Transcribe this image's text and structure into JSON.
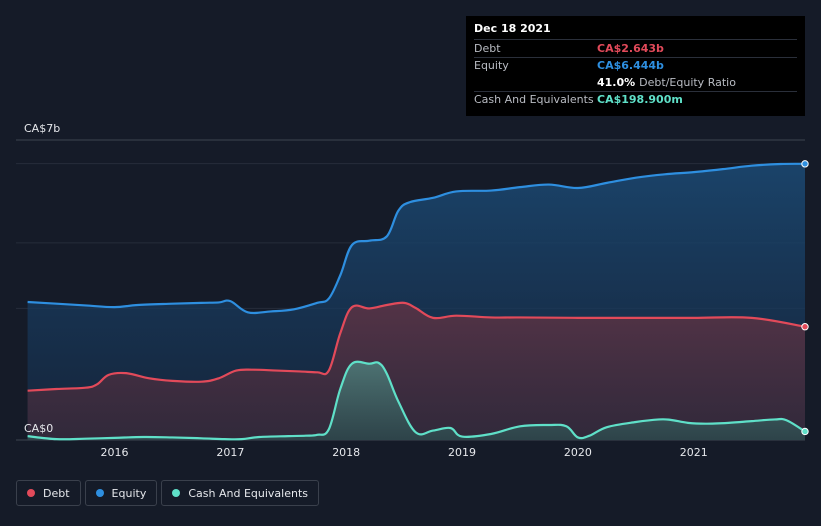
{
  "tooltip": {
    "date": "Dec 18 2021",
    "debt_label": "Debt",
    "debt_value": "CA$2.643b",
    "equity_label": "Equity",
    "equity_value": "CA$6.444b",
    "ratio_value": "41.0%",
    "ratio_label": "Debt/Equity Ratio",
    "cash_label": "Cash And Equivalents",
    "cash_value": "CA$198.900m"
  },
  "legend": [
    {
      "label": "Debt",
      "color": "#e24a5a"
    },
    {
      "label": "Equity",
      "color": "#2e8fe0"
    },
    {
      "label": "Cash And Equivalents",
      "color": "#5fe0c8"
    }
  ],
  "chart_data": {
    "type": "area",
    "y_axis_labels": [
      "CA$7b",
      "CA$0"
    ],
    "ylim": [
      0,
      7
    ],
    "xlim": [
      2015.15,
      2021.96
    ],
    "x_ticks": [
      "2016",
      "2017",
      "2018",
      "2019",
      "2020",
      "2021"
    ],
    "grid": true,
    "legend_position": "bottom-left",
    "colors": {
      "debt": "#e24a5a",
      "equity": "#2e8fe0",
      "cash": "#5fe0c8"
    },
    "series": [
      {
        "name": "Equity",
        "key": "equity",
        "x": [
          2015.25,
          2015.5,
          2015.75,
          2016.0,
          2016.2,
          2016.5,
          2016.75,
          2016.9,
          2017.0,
          2017.15,
          2017.35,
          2017.55,
          2017.75,
          2017.85,
          2017.95,
          2018.05,
          2018.2,
          2018.35,
          2018.45,
          2018.55,
          2018.75,
          2018.95,
          2019.25,
          2019.5,
          2019.75,
          2020.0,
          2020.25,
          2020.5,
          2020.75,
          2021.0,
          2021.25,
          2021.5,
          2021.75,
          2021.96
        ],
        "values": [
          3.22,
          3.18,
          3.14,
          3.1,
          3.15,
          3.18,
          3.2,
          3.21,
          3.24,
          2.98,
          3.0,
          3.05,
          3.2,
          3.3,
          3.85,
          4.55,
          4.65,
          4.75,
          5.35,
          5.55,
          5.65,
          5.8,
          5.82,
          5.9,
          5.96,
          5.88,
          6.0,
          6.12,
          6.2,
          6.25,
          6.32,
          6.4,
          6.44,
          6.444
        ]
      },
      {
        "name": "Debt",
        "key": "debt",
        "x": [
          2015.25,
          2015.5,
          2015.75,
          2015.85,
          2015.95,
          2016.1,
          2016.3,
          2016.5,
          2016.75,
          2016.9,
          2017.05,
          2017.2,
          2017.4,
          2017.6,
          2017.75,
          2017.85,
          2017.95,
          2018.05,
          2018.2,
          2018.35,
          2018.5,
          2018.6,
          2018.75,
          2018.95,
          2019.25,
          2019.5,
          2020.0,
          2020.5,
          2021.0,
          2021.5,
          2021.96
        ],
        "values": [
          1.15,
          1.19,
          1.22,
          1.3,
          1.52,
          1.56,
          1.44,
          1.38,
          1.36,
          1.44,
          1.62,
          1.64,
          1.62,
          1.6,
          1.58,
          1.62,
          2.5,
          3.1,
          3.07,
          3.15,
          3.2,
          3.08,
          2.85,
          2.9,
          2.86,
          2.86,
          2.85,
          2.85,
          2.85,
          2.85,
          2.643
        ]
      },
      {
        "name": "Cash And Equivalents",
        "key": "cash",
        "x": [
          2015.25,
          2015.5,
          2015.75,
          2016.0,
          2016.25,
          2016.5,
          2016.75,
          2016.95,
          2017.1,
          2017.25,
          2017.5,
          2017.65,
          2017.75,
          2017.85,
          2017.95,
          2018.05,
          2018.2,
          2018.28,
          2018.35,
          2018.45,
          2018.6,
          2018.75,
          2018.9,
          2019.0,
          2019.25,
          2019.5,
          2019.75,
          2019.9,
          2020.0,
          2020.1,
          2020.25,
          2020.5,
          2020.7,
          2020.8,
          2020.95,
          2021.1,
          2021.3,
          2021.5,
          2021.7,
          2021.8,
          2021.96
        ],
        "values": [
          0.09,
          0.02,
          0.03,
          0.05,
          0.07,
          0.06,
          0.04,
          0.02,
          0.02,
          0.07,
          0.09,
          0.1,
          0.12,
          0.25,
          1.2,
          1.78,
          1.78,
          1.8,
          1.55,
          0.9,
          0.18,
          0.22,
          0.28,
          0.08,
          0.14,
          0.32,
          0.35,
          0.32,
          0.06,
          0.1,
          0.3,
          0.42,
          0.48,
          0.47,
          0.4,
          0.38,
          0.4,
          0.44,
          0.48,
          0.46,
          0.1989
        ]
      }
    ]
  }
}
